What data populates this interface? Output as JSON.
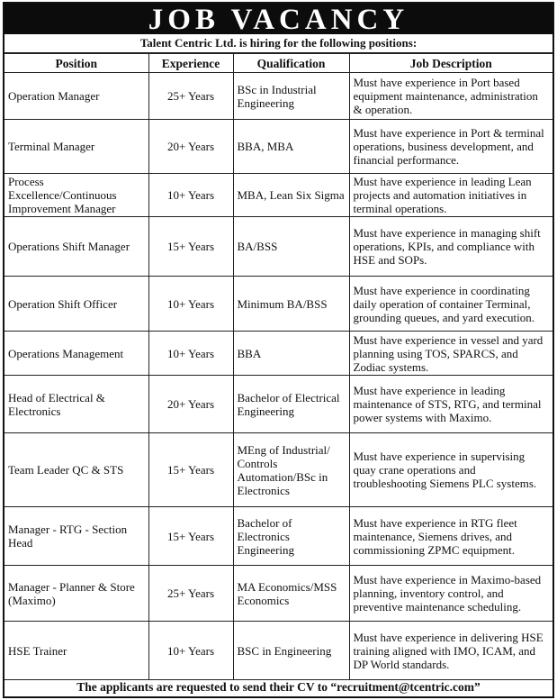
{
  "title": "JOB VACANCY",
  "subtitle": "Talent Centric Ltd. is hiring for the following positions:",
  "columns": [
    "Position",
    "Experience",
    "Qualification",
    "Job Description"
  ],
  "rows": [
    {
      "position": "Operation Manager",
      "experience": "25+ Years",
      "qualification": "BSc in Industrial Engineering",
      "description": "Must have experience in Port based equipment maintenance, administration & operation."
    },
    {
      "position": "Terminal Manager",
      "experience": "20+ Years",
      "qualification": "BBA, MBA",
      "description": "Must have experience in Port & terminal operations, business development, and financial performance."
    },
    {
      "position": "Process Excellence/Continuous Improvement Manager",
      "experience": "10+ Years",
      "qualification": "MBA, Lean Six Sigma",
      "description": "Must have experience in leading Lean projects and automation initiatives in terminal operations."
    },
    {
      "position": "Operations Shift Manager",
      "experience": "15+ Years",
      "qualification": "BA/BSS",
      "description": "Must have experience in managing shift operations, KPIs, and compliance with HSE and SOPs."
    },
    {
      "position": "Operation Shift Officer",
      "experience": "10+ Years",
      "qualification": "Minimum BA/BSS",
      "description": "Must have experience in coordinating daily operation of container Terminal, grounding queues, and yard execution."
    },
    {
      "position": "Operations Management",
      "experience": "10+ Years",
      "qualification": "BBA",
      "description": "Must have experience in vessel and yard planning using TOS, SPARCS, and Zodiac systems."
    },
    {
      "position": "Head of Electrical & Electronics",
      "experience": "20+ Years",
      "qualification": "Bachelor of Electrical Engineering",
      "description": "Must have experience in leading maintenance of STS, RTG, and terminal power systems with Maximo."
    },
    {
      "position": "Team Leader QC & STS",
      "experience": "15+ Years",
      "qualification": "MEng of Industrial/ Controls Automation/BSc in Electronics",
      "description": "Must have experience in supervising quay crane operations and troubleshooting Siemens PLC systems."
    },
    {
      "position": "Manager - RTG - Section Head",
      "experience": "15+ Years",
      "qualification": "Bachelor of Electronics Engineering",
      "description": "Must have experience in RTG fleet maintenance, Siemens drives, and commissioning ZPMC equipment."
    },
    {
      "position": "Manager - Planner & Store (Maximo)",
      "experience": "25+ Years",
      "qualification": "MA Economics/MSS Economics",
      "description": "Must have experience in Maximo-based planning, inventory control, and preventive maintenance scheduling."
    },
    {
      "position": "HSE Trainer",
      "experience": "10+ Years",
      "qualification": "BSC in Engineering",
      "description": "Must have experience in delivering HSE training aligned with IMO, ICAM, and DP World standards."
    }
  ],
  "footer": "The applicants are requested to send their CV to “recruitment@tcentric.com”"
}
